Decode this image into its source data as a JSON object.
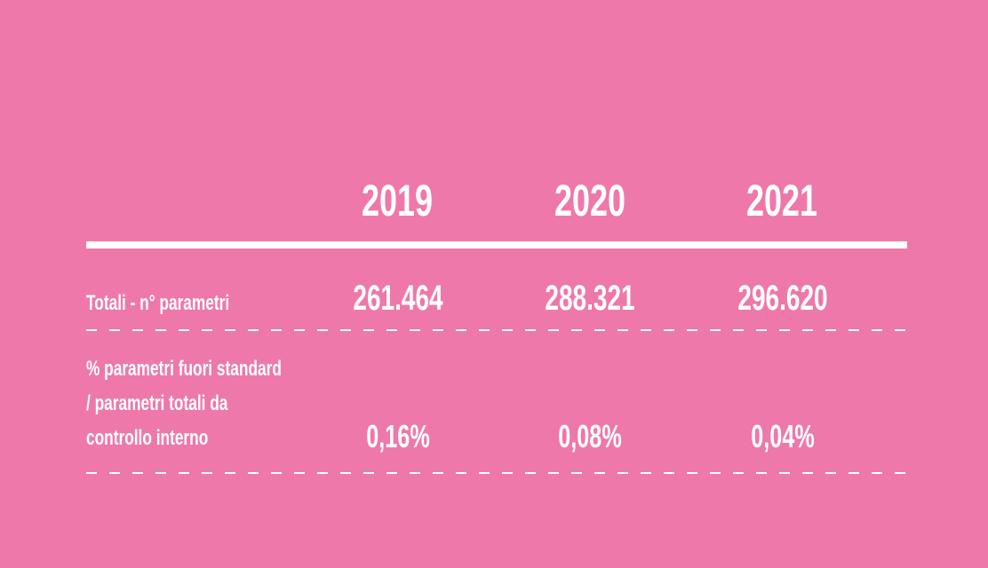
{
  "table": {
    "years": [
      "2019",
      "2020",
      "2021"
    ],
    "rows": [
      {
        "label_lines": [
          "Totali - n° parametri"
        ],
        "values": [
          "261.464",
          "288.321",
          "296.620"
        ]
      },
      {
        "label_lines": [
          "% parametri fuori standard",
          "/ parametri totali da",
          "controllo interno"
        ],
        "values": [
          "0,16%",
          "0,08%",
          "0,04%"
        ]
      }
    ]
  },
  "colors": {
    "background": "#ee78aa",
    "text": "#ffffff"
  }
}
